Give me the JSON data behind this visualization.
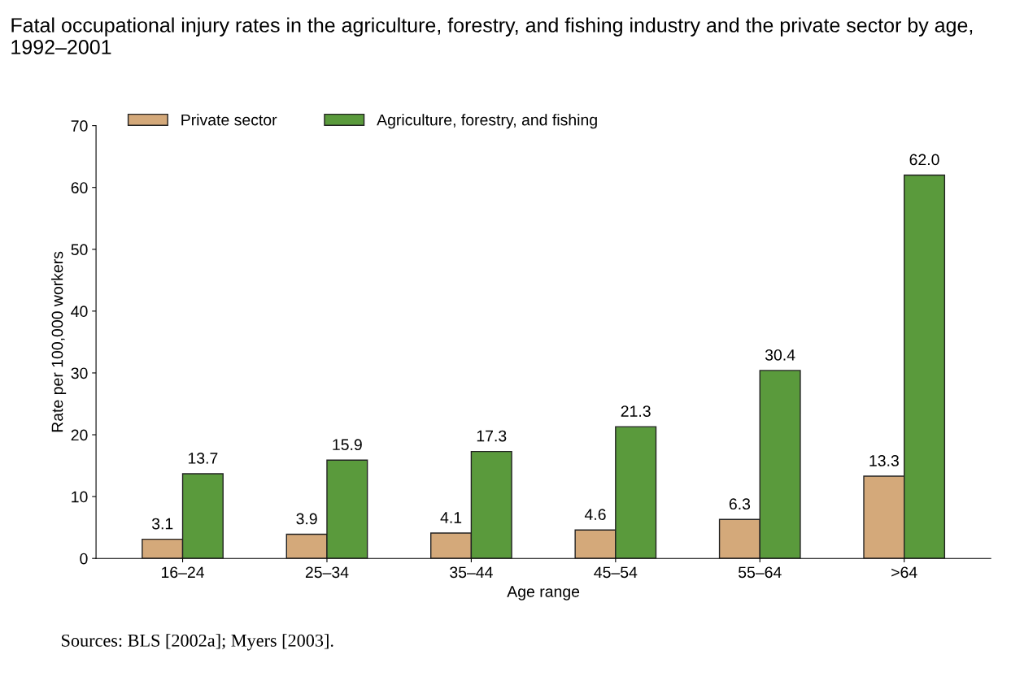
{
  "chart_data": {
    "type": "bar",
    "title": "Fatal occupational injury rates in the agriculture, forestry, and fishing industry and the private sector by age, 1992–2001",
    "xlabel": "Age range",
    "ylabel": "Rate per 100,000 workers",
    "annotations": [
      "Sources: BLS [2002a]; Myers [2003]."
    ],
    "categories": [
      "16–24",
      "25–34",
      "35–44",
      "45–54",
      "55–64",
      ">64"
    ],
    "series": [
      {
        "name": "Private sector",
        "color": "#d4a97a",
        "values": [
          3.1,
          3.9,
          4.1,
          4.6,
          6.3,
          13.3
        ],
        "value_labels": [
          "3.1",
          "3.9",
          "4.1",
          "4.6",
          "6.3",
          "13.3"
        ]
      },
      {
        "name": "Agriculture, forestry, and fishing",
        "color": "#5a9a3c",
        "values": [
          13.7,
          15.9,
          17.3,
          21.3,
          30.4,
          62.0
        ],
        "value_labels": [
          "13.7",
          "15.9",
          "17.3",
          "21.3",
          "30.4",
          "62.0"
        ]
      }
    ],
    "ylim": [
      0,
      70
    ],
    "yticks": [
      0,
      10,
      20,
      30,
      40,
      50,
      60,
      70
    ],
    "grid": false,
    "legend": "top left"
  }
}
